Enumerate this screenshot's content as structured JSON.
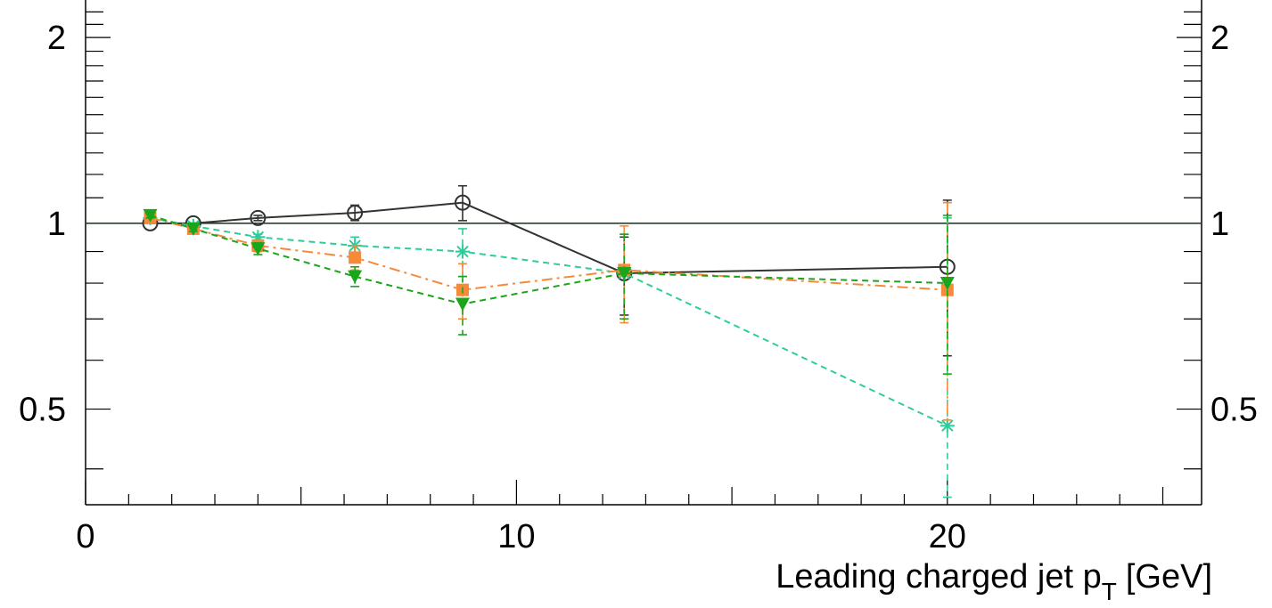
{
  "chart_data": {
    "type": "line",
    "title": "",
    "xlabel": "Leading charged jet p",
    "xlabel_subscript": "T",
    "xlabel_unit": "[GeV]",
    "ylabel": "",
    "xlim": [
      0,
      25.9
    ],
    "ylim": [
      0.35,
      2.3
    ],
    "y_scale": "log",
    "x_major_ticks": [
      0,
      10,
      20
    ],
    "x_tick_labels": [
      "0",
      "10",
      "20"
    ],
    "y_labeled_ticks": [
      0.5,
      1,
      2
    ],
    "y_tick_labels_left": [
      "0.5",
      "1",
      "2"
    ],
    "y_tick_labels_right": [
      "0.5",
      "1",
      "2"
    ],
    "reference_line": 1,
    "grid": false,
    "series": [
      {
        "marker": "open-circle",
        "line_style": "solid",
        "color": "#333333",
        "x": [
          1.5,
          2.5,
          4,
          6.25,
          8.75,
          12.5,
          20
        ],
        "y": [
          1.0,
          1.0,
          1.02,
          1.04,
          1.08,
          0.83,
          0.85
        ],
        "y_err": [
          0.0,
          0.0,
          0.01,
          0.03,
          0.07,
          0.12,
          0.24
        ]
      },
      {
        "marker": "asterisk",
        "line_style": "dashed",
        "color": "#2ecc9a",
        "x": [
          1.5,
          2.5,
          4,
          6.25,
          8.75,
          12.5,
          20
        ],
        "y": [
          1.02,
          0.99,
          0.95,
          0.92,
          0.9,
          0.83,
          0.47
        ],
        "y_err": [
          0.01,
          0.01,
          0.01,
          0.03,
          0.08,
          0.13,
          0.55
        ]
      },
      {
        "marker": "filled-square",
        "line_style": "dash-dot",
        "color": "#f58a3a",
        "x": [
          1.5,
          2.5,
          4,
          6.25,
          8.75,
          12.5,
          20
        ],
        "y": [
          1.02,
          0.98,
          0.92,
          0.88,
          0.78,
          0.84,
          0.78
        ],
        "y_err": [
          0.01,
          0.01,
          0.02,
          0.04,
          0.08,
          0.15,
          0.3
        ]
      },
      {
        "marker": "filled-triangle-down",
        "line_style": "dashed",
        "color": "#1aa51a",
        "x": [
          1.5,
          2.5,
          4,
          6.25,
          8.75,
          12.5,
          20
        ],
        "y": [
          1.03,
          0.98,
          0.91,
          0.82,
          0.74,
          0.83,
          0.8
        ],
        "y_err": [
          0.01,
          0.01,
          0.02,
          0.03,
          0.08,
          0.13,
          0.23
        ]
      }
    ]
  }
}
